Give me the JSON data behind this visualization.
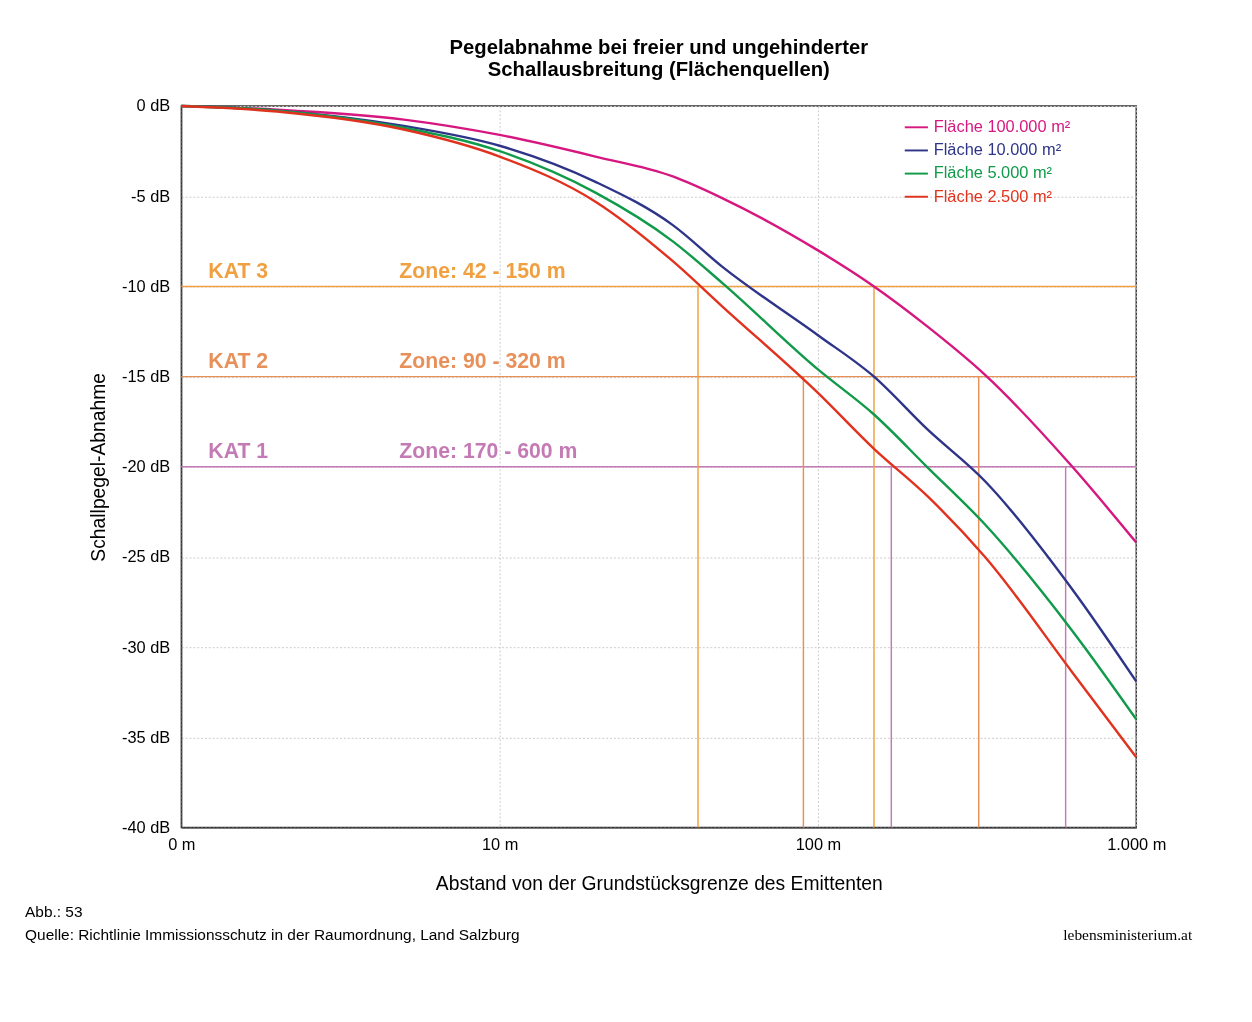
{
  "chart_data": {
    "type": "line",
    "title": "Pegelabnahme bei freier und ungehinderter\nSchallausbreitung (Flächenquellen)",
    "xlabel": "Abstand von der Grundstücksgrenze des Emittenten",
    "ylabel": "Schallpegel-Abnahme",
    "log": "x",
    "x": [
      1,
      2,
      5,
      10,
      20,
      35,
      50,
      100,
      150,
      220,
      335,
      630,
      1000
    ],
    "series": [
      {
        "name": "Fläche 100.000 m²",
        "color": "#d6177f",
        "values": [
          0,
          -0.2,
          -0.75,
          -1.6,
          -2.8,
          -3.9,
          -5.1,
          -8.0,
          -10.0,
          -12.2,
          -14.9,
          -20.0,
          -24.2
        ]
      },
      {
        "name": "Fläche 10.000 m²",
        "color": "#2e3588",
        "values": [
          0,
          -0.25,
          -1.1,
          -2.2,
          -4.2,
          -6.6,
          -8.9,
          -12.7,
          -15.0,
          -17.9,
          -20.8,
          -26.8,
          -31.9
        ]
      },
      {
        "name": "Fläche 5.000 m²",
        "color": "#109a4a",
        "values": [
          0,
          -0.25,
          -1.2,
          -2.5,
          -4.8,
          -7.5,
          -9.8,
          -14.6,
          -17.1,
          -20.0,
          -23.2,
          -29.1,
          -34.0
        ]
      },
      {
        "name": "Fläche 2.500 m²",
        "color": "#e0321e",
        "values": [
          0,
          -0.3,
          -1.3,
          -2.8,
          -5.3,
          -8.6,
          -11.1,
          -15.9,
          -19.0,
          -21.6,
          -25.0,
          -31.4,
          -36.1
        ]
      }
    ],
    "xlim": [
      1,
      1000
    ],
    "xticks": [
      {
        "value": 1,
        "label": "0 m"
      },
      {
        "value": 10,
        "label": "10 m"
      },
      {
        "value": 100,
        "label": "100 m"
      },
      {
        "value": 1000,
        "label": "1.000 m"
      }
    ],
    "ylim": [
      -40,
      0
    ],
    "yticks": [
      {
        "value": 0,
        "label": "0 dB"
      },
      {
        "value": -5,
        "label": "-5 dB"
      },
      {
        "value": -10,
        "label": "-10 dB"
      },
      {
        "value": -15,
        "label": "-15 dB"
      },
      {
        "value": -20,
        "label": "-20 dB"
      },
      {
        "value": -25,
        "label": "-25 dB"
      },
      {
        "value": -30,
        "label": "-30 dB"
      },
      {
        "value": -35,
        "label": "-35 dB"
      },
      {
        "value": -40,
        "label": "-40 dB"
      }
    ],
    "grid": true,
    "legend": "top right",
    "line_style": "solid",
    "ref_lines": [
      {
        "axis": "y",
        "value": -10,
        "label": "KAT 3",
        "color": "#f0a040"
      },
      {
        "axis": "y",
        "value": -15,
        "label": "KAT 2",
        "color": "#e8905a"
      },
      {
        "axis": "y",
        "value": -20,
        "label": "KAT 1",
        "color": "#c47bb5"
      },
      {
        "axis": "x",
        "value": 42,
        "color": "#f0a040"
      },
      {
        "axis": "x",
        "value": 150,
        "color": "#f0a040"
      },
      {
        "axis": "x",
        "value": 90,
        "color": "#e8905a"
      },
      {
        "axis": "x",
        "value": 320,
        "color": "#e8905a"
      },
      {
        "axis": "x",
        "value": 170,
        "color": "#c47bb5"
      },
      {
        "axis": "x",
        "value": 600,
        "color": "#c47bb5"
      }
    ],
    "annotations": [
      "Zone: 42 - 150 m",
      "Zone: 90 - 320 m",
      "Zone: 170 - 600 m",
      "Abb.: 53",
      "Quelle: Richtlinie Immissionsschutz in der Raumordnung, Land Salzburg",
      "lebensministerium.at"
    ]
  }
}
